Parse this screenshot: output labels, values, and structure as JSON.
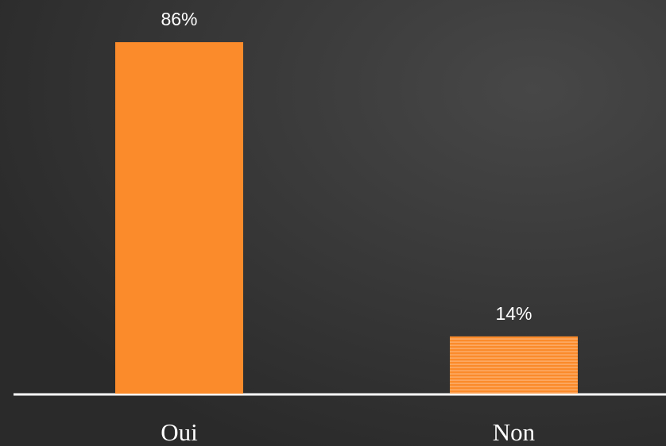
{
  "chart_data": {
    "type": "bar",
    "categories": [
      "Oui",
      "Non"
    ],
    "values": [
      86,
      14
    ],
    "value_labels": [
      "86%",
      "14%"
    ],
    "colors": [
      "#fb8b2b",
      "#fb8b2b"
    ],
    "patterns": [
      "solid",
      "stripes"
    ]
  }
}
